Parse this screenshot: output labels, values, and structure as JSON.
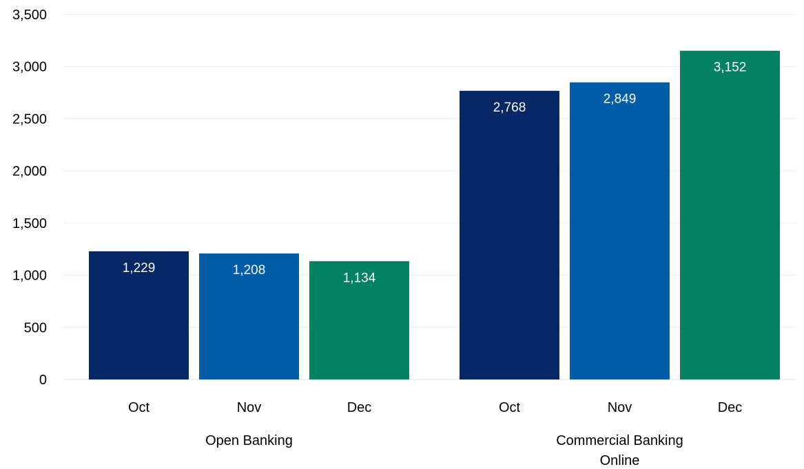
{
  "chart_data": {
    "type": "bar",
    "title": "",
    "xlabel": "",
    "ylabel": "",
    "ylim": [
      0,
      3500
    ],
    "yticks": [
      0,
      500,
      1000,
      1500,
      2000,
      2500,
      3000,
      3500
    ],
    "ytick_labels": [
      "0",
      "500",
      "1,000",
      "1,500",
      "2,000",
      "2,500",
      "3,000",
      "3,500"
    ],
    "grid": true,
    "legend": "none",
    "groups": [
      {
        "label_lines": [
          "Open Banking"
        ],
        "bars": [
          {
            "category": "Oct",
            "value": 1229,
            "label": "1,229",
            "color": "#062766"
          },
          {
            "category": "Nov",
            "value": 1208,
            "label": "1,208",
            "color": "#005ca4"
          },
          {
            "category": "Dec",
            "value": 1134,
            "label": "1,134",
            "color": "#008160"
          }
        ]
      },
      {
        "label_lines": [
          "Commercial Banking",
          "Online"
        ],
        "bars": [
          {
            "category": "Oct",
            "value": 2768,
            "label": "2,768",
            "color": "#062766"
          },
          {
            "category": "Nov",
            "value": 2849,
            "label": "2,849",
            "color": "#005ca4"
          },
          {
            "category": "Dec",
            "value": 3152,
            "label": "3,152",
            "color": "#008160"
          }
        ]
      }
    ]
  }
}
